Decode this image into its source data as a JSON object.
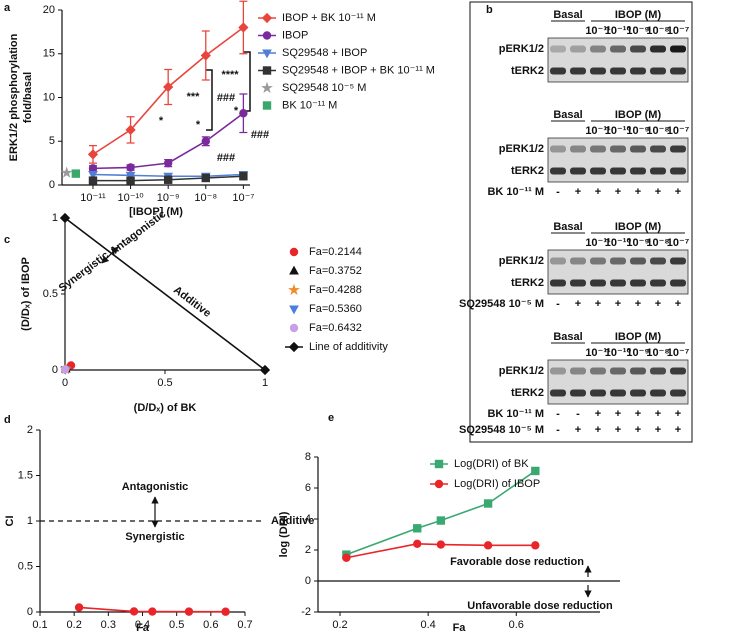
{
  "chart_data": [
    {
      "type": "line",
      "panel": "a",
      "xscale": "log",
      "xlabel": "[IBOP] (M)",
      "ylabel": [
        "ERK1/2 phosphorylation",
        "fold/basal"
      ],
      "xlim": [
        1.5e-12,
        1.5e-07
      ],
      "xticks": [
        {
          "value": 1e-11,
          "label": "10⁻¹¹"
        },
        {
          "value": 1e-10,
          "label": "10⁻¹⁰"
        },
        {
          "value": 1e-09,
          "label": "10⁻⁹"
        },
        {
          "value": 1e-08,
          "label": "10⁻⁸"
        },
        {
          "value": 1e-07,
          "label": "10⁻⁷"
        }
      ],
      "ylim": [
        0,
        20
      ],
      "yticks": [
        0,
        5,
        10,
        15,
        20
      ],
      "legend": "right",
      "series": [
        {
          "name": "IBOP + BK 10⁻¹¹ M",
          "color": "#e8463c",
          "marker": "diamond",
          "x": [
            1e-11,
            1e-10,
            1e-09,
            1e-08,
            1e-07
          ],
          "values": [
            3.5,
            6.3,
            11.2,
            14.8,
            18
          ],
          "errors": [
            1,
            1.5,
            2,
            2.8,
            3
          ]
        },
        {
          "name": "IBOP",
          "color": "#7b2a9c",
          "marker": "circle",
          "x": [
            1e-11,
            1e-10,
            1e-09,
            1e-08,
            1e-07
          ],
          "values": [
            1.9,
            2.0,
            2.5,
            5.0,
            8.2
          ],
          "errors": [
            0.3,
            0.3,
            0.4,
            0.5,
            2.2
          ]
        },
        {
          "name": "SQ29548 + IBOP",
          "color": "#4f7fd6",
          "marker": "triangle-down",
          "x": [
            1e-11,
            1e-10,
            1e-09,
            1e-08,
            1e-07
          ],
          "values": [
            1.2,
            1.1,
            1.0,
            1.0,
            1.2
          ]
        },
        {
          "name": "SQ29548 + IBOP + BK 10⁻¹¹ M",
          "color": "#333333",
          "marker": "square",
          "x": [
            1e-11,
            1e-10,
            1e-09,
            1e-08,
            1e-07
          ],
          "values": [
            0.5,
            0.5,
            0.6,
            0.8,
            1.0
          ]
        },
        {
          "name": "SQ29548 10⁻⁵ M",
          "color": "#9a9a9a",
          "marker": "star",
          "x": [
            2e-12
          ],
          "values": [
            1.4
          ]
        },
        {
          "name": "BK 10⁻¹¹ M",
          "color": "#3aa86b",
          "marker": "square",
          "x": [
            3.5e-12
          ],
          "values": [
            1.3
          ]
        }
      ],
      "annotations": [
        {
          "text": "*"
        },
        {
          "text": "***"
        },
        {
          "text": "****"
        },
        {
          "text": "*"
        },
        {
          "text": "*"
        },
        {
          "text": "###"
        },
        {
          "text": "###"
        },
        {
          "text": "###"
        }
      ]
    },
    {
      "type": "scatter",
      "panel": "c",
      "xlabel": "(D/Dₓ) of BK",
      "ylabel": "(D/Dₓ) of IBOP",
      "xlim": [
        0,
        1
      ],
      "xticks": [
        0,
        0.5,
        1
      ],
      "ylim": [
        0,
        1
      ],
      "yticks": [
        0,
        0.5,
        1
      ],
      "legend": "right",
      "series": [
        {
          "name": "Fa=0.2144",
          "color": "#e8262a",
          "marker": "circle",
          "x": [
            0.03
          ],
          "values": [
            0.03
          ]
        },
        {
          "name": "Fa=0.3752",
          "color": "#111111",
          "marker": "triangle",
          "x": [
            0.004
          ],
          "values": [
            0.006
          ]
        },
        {
          "name": "Fa=0.4288",
          "color": "#f08a2c",
          "marker": "star",
          "x": [
            0.003
          ],
          "values": [
            0.005
          ]
        },
        {
          "name": "Fa=0.5360",
          "color": "#4a7fe0",
          "marker": "triangle-down",
          "x": [
            0.002
          ],
          "values": [
            0.004
          ]
        },
        {
          "name": "Fa=0.6432",
          "color": "#c9a0e8",
          "marker": "circle",
          "x": [
            0.001
          ],
          "values": [
            0.004
          ]
        },
        {
          "name": "Line of additivity",
          "color": "#111111",
          "marker": "diamond",
          "connect": true,
          "x": [
            0,
            1
          ],
          "values": [
            1,
            0
          ]
        }
      ],
      "annotations": [
        {
          "text": "Antagonistic",
          "color": "#2b2bb5"
        },
        {
          "text": "Synergistic",
          "color": "#e02020"
        },
        {
          "text": "Additive",
          "color": "#111111"
        }
      ]
    },
    {
      "type": "line",
      "panel": "d",
      "xlabel": "Fa",
      "ylabel": "CI",
      "xlim": [
        0.1,
        0.7
      ],
      "xticks": [
        0.1,
        0.2,
        0.3,
        0.4,
        0.5,
        0.6,
        0.7
      ],
      "ylim": [
        0,
        2
      ],
      "yticks": [
        0,
        0.5,
        1,
        1.5,
        2
      ],
      "series": [
        {
          "color": "#e8262a",
          "marker": "circle",
          "x": [
            0.2144,
            0.3752,
            0.4288,
            0.536,
            0.6432
          ],
          "values": [
            0.05,
            0.006,
            0.005,
            0.004,
            0.003
          ]
        }
      ],
      "reference_lines": [
        {
          "y": 1,
          "style": "dashed",
          "label": "Additive"
        }
      ],
      "annotations": [
        {
          "text": "Antagonistic",
          "color": "#2b2bb5"
        },
        {
          "text": "Synergistic",
          "color": "#e02020"
        }
      ]
    },
    {
      "type": "line",
      "panel": "e",
      "xlabel": "Fa",
      "ylabel": "log (DRI)",
      "xlim": [
        0.15,
        0.79
      ],
      "xticks": [
        0.2,
        0.4,
        0.6
      ],
      "ylim": [
        -2,
        8
      ],
      "yticks": [
        -2,
        0,
        2,
        4,
        6,
        8
      ],
      "legend": "top",
      "series": [
        {
          "name": "Log(DRI) of BK",
          "color": "#3aa873",
          "marker": "square",
          "x": [
            0.2144,
            0.3752,
            0.4288,
            0.536,
            0.6432
          ],
          "values": [
            1.7,
            3.4,
            3.9,
            5.0,
            7.1
          ]
        },
        {
          "name": "Log(DRI) of IBOP",
          "color": "#e8262a",
          "marker": "circle",
          "x": [
            0.2144,
            0.3752,
            0.4288,
            0.536,
            0.6432
          ],
          "values": [
            1.5,
            2.4,
            2.35,
            2.3,
            2.3
          ]
        }
      ],
      "reference_lines": [
        {
          "y": 0,
          "style": "solid"
        }
      ],
      "annotations": [
        {
          "text": "Favorable dose reduction",
          "color": "#555555"
        },
        {
          "text": "Unfavorable dose reduction",
          "color": "#555555"
        }
      ]
    }
  ],
  "blot_panel": {
    "panel": "b",
    "blots": [
      {
        "groups": [
          "Basal",
          "IBOP (M)"
        ],
        "concentrations": [
          "10⁻¹¹",
          "10⁻¹⁰",
          "10⁻⁹",
          "10⁻⁸",
          "10⁻⁷"
        ],
        "rows": [
          "pERK1/2",
          "tERK2"
        ],
        "treatments": []
      },
      {
        "groups": [
          "Basal",
          "IBOP (M)"
        ],
        "concentrations": [
          "10⁻¹¹",
          "10⁻¹⁰",
          "10⁻⁹",
          "10⁻⁸",
          "10⁻⁷"
        ],
        "rows": [
          "pERK1/2",
          "tERK2"
        ],
        "treatments": [
          {
            "label": "BK 10⁻¹¹ M",
            "signs": [
              "-",
              "+",
              "+",
              "+",
              "+",
              "+",
              "+"
            ]
          }
        ]
      },
      {
        "groups": [
          "Basal",
          "IBOP (M)"
        ],
        "concentrations": [
          "10⁻¹¹",
          "10⁻¹⁰",
          "10⁻⁹",
          "10⁻⁸",
          "10⁻⁷"
        ],
        "rows": [
          "pERK1/2",
          "tERK2"
        ],
        "treatments": [
          {
            "label": "SQ29548 10⁻⁵ M",
            "signs": [
              "-",
              "+",
              "+",
              "+",
              "+",
              "+",
              "+"
            ]
          }
        ]
      },
      {
        "groups": [
          "Basal",
          "IBOP (M)"
        ],
        "concentrations": [
          "10⁻¹¹",
          "10⁻¹⁰",
          "10⁻⁹",
          "10⁻⁸",
          "10⁻⁷"
        ],
        "rows": [
          "pERK1/2",
          "tERK2"
        ],
        "treatments": [
          {
            "label": "BK 10⁻¹¹ M",
            "signs": [
              "-",
              "-",
              "+",
              "+",
              "+",
              "+",
              "+"
            ]
          },
          {
            "label": "SQ29548 10⁻⁵ M",
            "signs": [
              "-",
              "+",
              "+",
              "+",
              "+",
              "+",
              "+"
            ]
          }
        ]
      }
    ]
  }
}
